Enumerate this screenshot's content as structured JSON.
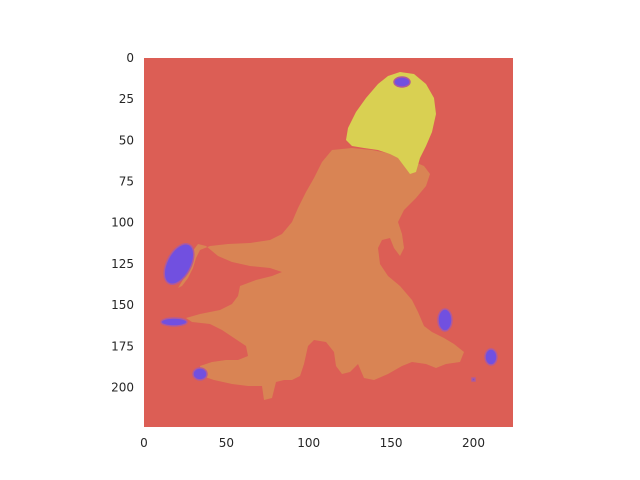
{
  "chart_data": {
    "type": "heatmap",
    "title": "",
    "xlabel": "",
    "ylabel": "",
    "image_width": 224,
    "image_height": 224,
    "xlim": [
      0,
      224
    ],
    "ylim": [
      224,
      0
    ],
    "y_axis_inverted": true,
    "grid": false,
    "x_ticks": [
      0,
      50,
      100,
      150,
      200
    ],
    "y_ticks": [
      0,
      25,
      50,
      75,
      100,
      125,
      150,
      175,
      200
    ],
    "x_tick_labels": [
      "0",
      "50",
      "100",
      "150",
      "200"
    ],
    "y_tick_labels": [
      "0",
      "25",
      "50",
      "75",
      "100",
      "125",
      "150",
      "175",
      "200"
    ],
    "colors": {
      "background_class": "#dc5e55",
      "body_class": "#d98454",
      "head_class": "#d9d052",
      "small_class": "#7150e0",
      "small_class_dark": "#5a3fd0",
      "small_class_edge": "#b05a9a"
    }
  }
}
